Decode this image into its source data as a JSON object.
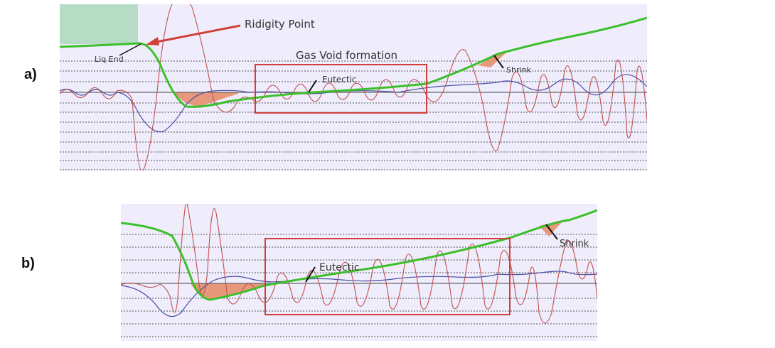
{
  "panels": [
    {
      "label": "a)",
      "rigidity_point": "Ridigity Point",
      "liq_end": "Liq End",
      "gas_void": "Gas Void formation",
      "eutectic": "Eutectic",
      "shrink": "Shrink"
    },
    {
      "label": "b)",
      "eutectic": "Eutectic",
      "shrink": "Shrink"
    }
  ]
}
